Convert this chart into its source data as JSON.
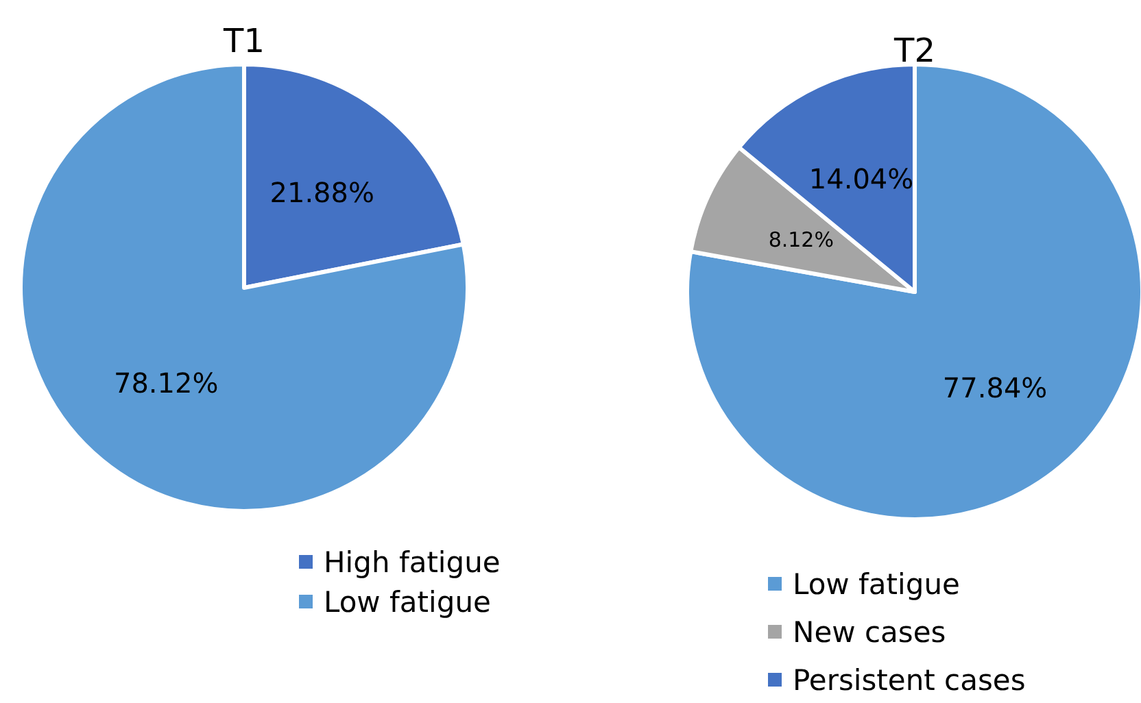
{
  "chart_data": [
    {
      "type": "pie",
      "title": "T1",
      "categories": [
        "High fatigue",
        "Low fatigue"
      ],
      "values": [
        21.88,
        78.12
      ],
      "colors": [
        "#4472c4",
        "#5b9bd5"
      ],
      "data_labels": true,
      "value_labels": [
        "21.88%",
        "78.12%"
      ],
      "legend": "bottom"
    },
    {
      "type": "pie",
      "title": "T2",
      "categories": [
        "Low fatigue",
        "New cases",
        "Persistent cases"
      ],
      "values": [
        77.84,
        8.12,
        14.04
      ],
      "colors": [
        "#5b9bd5",
        "#a5a5a5",
        "#4472c4"
      ],
      "data_labels": true,
      "value_labels": [
        "77.84%",
        "8.12%",
        "14.04%"
      ],
      "legend": "bottom"
    }
  ]
}
